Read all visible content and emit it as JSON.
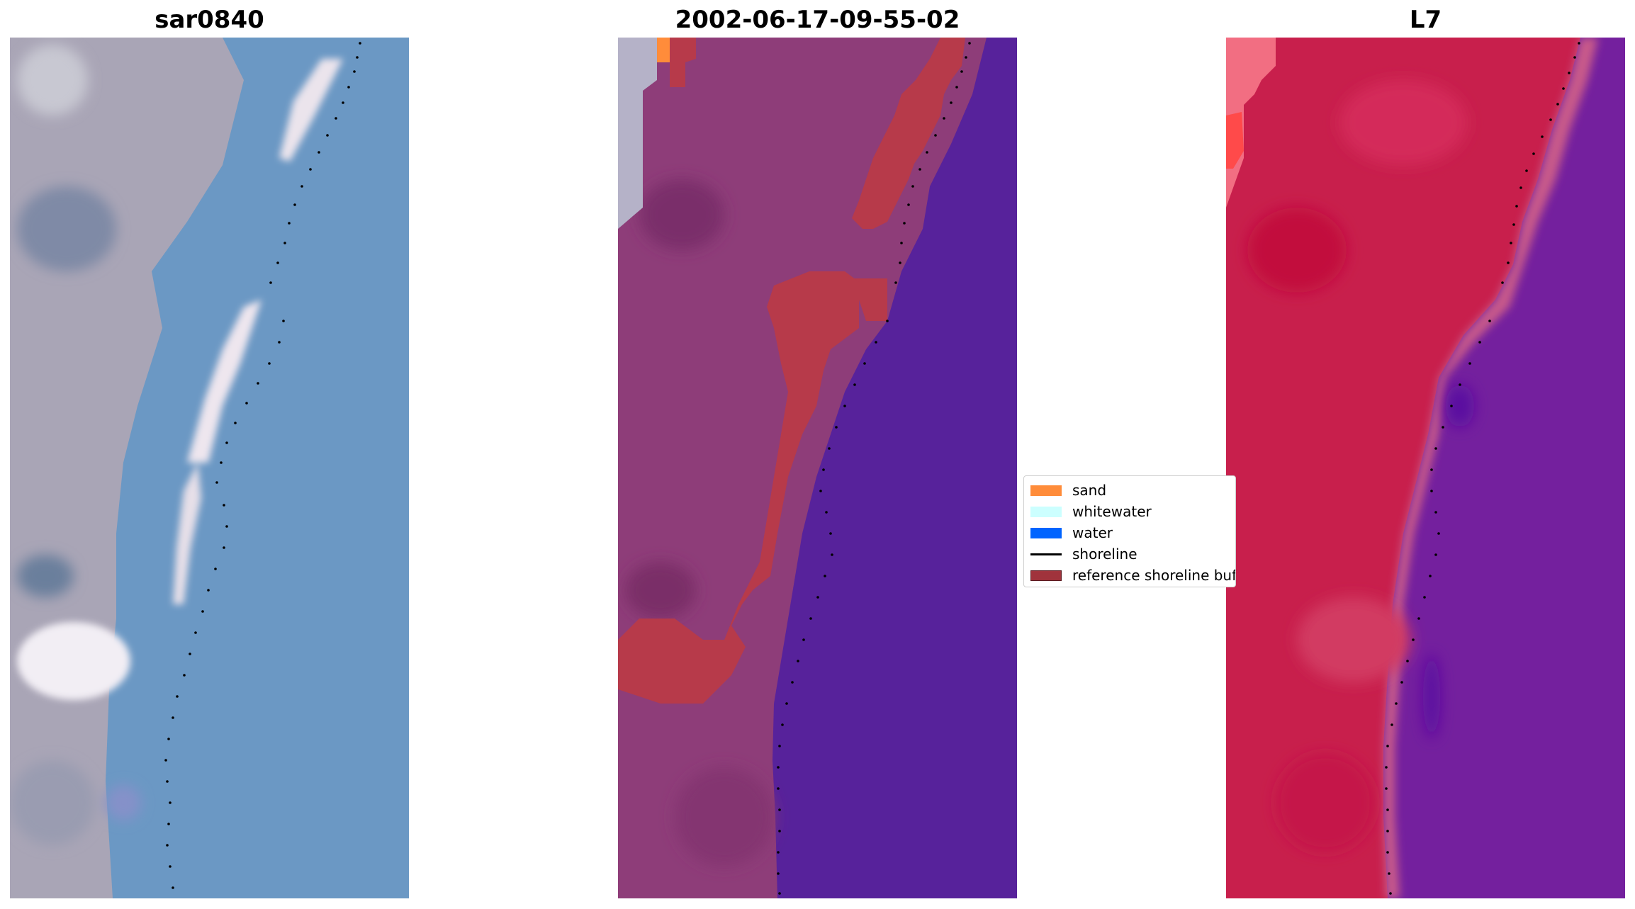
{
  "panels": [
    {
      "title": "sar0840",
      "style": "rgb"
    },
    {
      "title": "2002-06-17-09-55-02",
      "style": "classified"
    },
    {
      "title": "L7",
      "style": "false-color"
    }
  ],
  "legend": {
    "items": [
      {
        "label": "sand",
        "kind": "patch",
        "color": "#ff8c3a"
      },
      {
        "label": "whitewater",
        "kind": "patch",
        "color": "#ccffff"
      },
      {
        "label": "water",
        "kind": "patch",
        "color": "#0064ff"
      },
      {
        "label": "shoreline",
        "kind": "line",
        "color": "#000000"
      },
      {
        "label": "reference shoreline buffer",
        "kind": "patch",
        "color": "#a0333c"
      }
    ]
  },
  "colors": {
    "rgb_land": "#a7a3b5",
    "rgb_sand": "#e6dce6",
    "rgb_water": "#6a96c4",
    "classified_land": "#8c3c78",
    "classified_water": "#57229b",
    "buffer": "#b83a48",
    "falsecolor_land": "#c81e4b",
    "falsecolor_water": "#76209e"
  }
}
